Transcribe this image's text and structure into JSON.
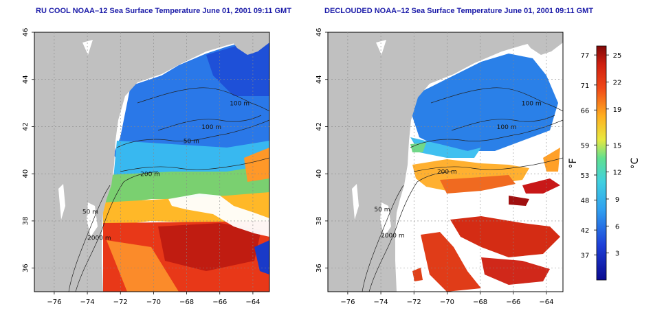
{
  "panels": [
    {
      "title": "RU COOL NOAA–12 Sea Surface Temperature June 01, 2001 09:11 GMT",
      "variant": "raw"
    },
    {
      "title": "DECLOUDED NOAA–12 Sea Surface Temperature June 01, 2001 09:11 GMT",
      "variant": "declouded"
    }
  ],
  "map_axes": {
    "lon_ticks": [
      -76,
      -74,
      -72,
      -70,
      -68,
      -66,
      -64
    ],
    "lat_ticks": [
      36,
      38,
      40,
      42,
      44,
      46
    ],
    "lon_range": [
      -77.2,
      -63.0
    ],
    "lat_range": [
      35.0,
      46.0
    ]
  },
  "contours": {
    "left": [
      {
        "text": "100 m",
        "lon": -65.4,
        "lat": 42.9
      },
      {
        "text": "100 m",
        "lon": -67.1,
        "lat": 41.9
      },
      {
        "text": "50 m",
        "lon": -68.2,
        "lat": 41.3
      },
      {
        "text": "200 m",
        "lon": -70.8,
        "lat": 39.9
      },
      {
        "text": "50 m",
        "lon": -74.3,
        "lat": 38.3
      },
      {
        "text": "2000 m",
        "lon": -74.0,
        "lat": 37.2
      }
    ],
    "right": [
      {
        "text": "100 m",
        "lon": -65.5,
        "lat": 42.9
      },
      {
        "text": "100 m",
        "lon": -67.0,
        "lat": 41.9
      },
      {
        "text": "200 m",
        "lon": -70.6,
        "lat": 40.0
      },
      {
        "text": "50 m",
        "lon": -74.4,
        "lat": 38.4
      },
      {
        "text": "2000 m",
        "lon": -74.0,
        "lat": 37.3
      }
    ]
  },
  "colorbar": {
    "fahrenheit_ticks": [
      77,
      71,
      66,
      59,
      53,
      48,
      42,
      37
    ],
    "celsius_ticks": [
      25,
      22,
      19,
      15,
      12,
      9,
      6,
      3
    ],
    "fahrenheit_unit": "°F",
    "celsius_unit": "°C",
    "range_c": [
      0,
      26
    ]
  },
  "colors": {
    "land": "#c0c0c0",
    "title": "#1a1aa8",
    "cold": "#1e40d8",
    "cool": "#38b4f0",
    "mid": "#40d8b0",
    "warm": "#ffb020",
    "hot": "#d82010",
    "hottest": "#8a0a0a"
  }
}
